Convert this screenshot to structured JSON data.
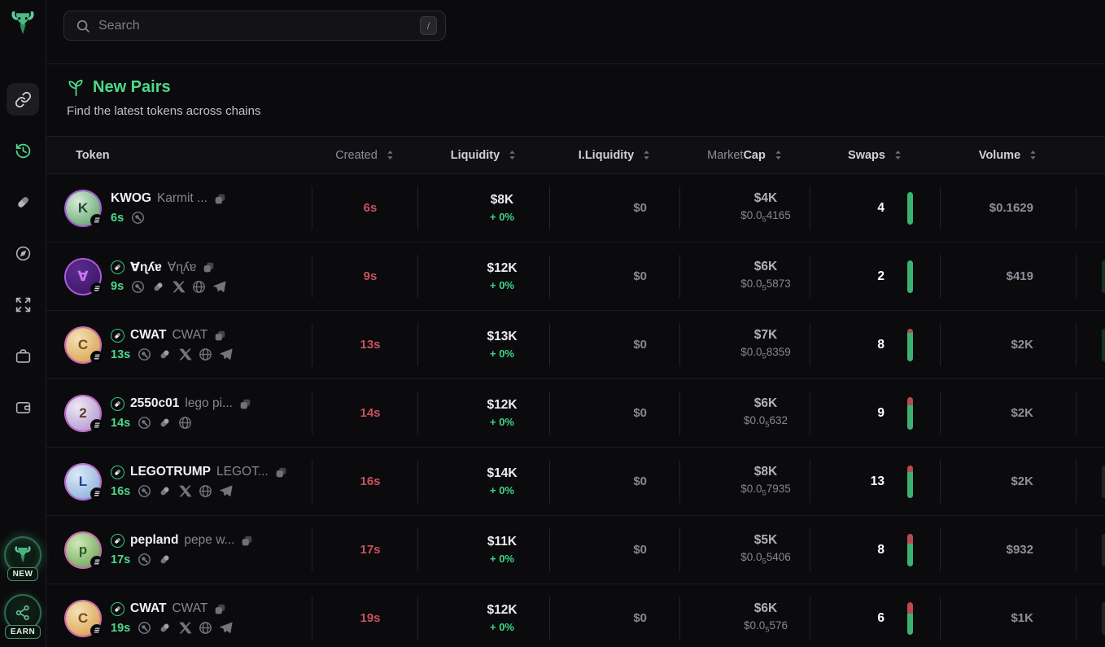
{
  "search": {
    "placeholder": "Search",
    "shortcut_key": "/"
  },
  "sidebar": {
    "logo_icon": "bull-logo",
    "nav_icons": [
      "chain-link",
      "history",
      "pill",
      "compass",
      "expand",
      "briefcase",
      "wallet"
    ],
    "active_icon": "chain-link",
    "badges": [
      {
        "label": "NEW",
        "icon": "bull"
      },
      {
        "label": "EARN",
        "icon": "share-network"
      }
    ]
  },
  "page": {
    "title": "New Pairs",
    "title_icon": "sprout",
    "subtitle": "Find the latest tokens across chains"
  },
  "table": {
    "headers": [
      {
        "label": "Token",
        "sortable": false
      },
      {
        "label": "Created",
        "sortable": true
      },
      {
        "label": "Liquidity",
        "sortable": true
      },
      {
        "label": "I.Liquidity",
        "sortable": true
      },
      {
        "label_light": "Market",
        "label_bold": "Cap",
        "sortable": true
      },
      {
        "label": "Swaps",
        "sortable": true
      },
      {
        "label": "Volume",
        "sortable": true
      }
    ],
    "rows": [
      {
        "symbol": "KWOG",
        "name": "Karmit ...",
        "graduated": false,
        "age": "6s",
        "links": [
          "scan"
        ],
        "created": "6s",
        "liquidity": "$8K",
        "liquidity_change": "+ 0%",
        "i_liquidity": "$0",
        "marketcap": "$4K",
        "price_prefix": "$0.0",
        "price_sub": "5",
        "price_digits": "4165",
        "swaps": "4",
        "sell_ratio": 0,
        "volume": "$0.1629",
        "edge_sliver": "",
        "avatar": {
          "bg1": "#d9ead9",
          "bg2": "#4f9b5e",
          "ring": "#a85fd6",
          "letter": "K",
          "fg": "#1e4d2b"
        }
      },
      {
        "symbol": "∀ɳʎɐ",
        "name": "∀ɳʎɐ",
        "graduated": true,
        "age": "9s",
        "links": [
          "scan",
          "pill",
          "x",
          "globe",
          "telegram"
        ],
        "created": "9s",
        "liquidity": "$12K",
        "liquidity_change": "+ 0%",
        "i_liquidity": "$0",
        "marketcap": "$6K",
        "price_prefix": "$0.0",
        "price_sub": "5",
        "price_digits": "5873",
        "swaps": "2",
        "sell_ratio": 0,
        "volume": "$419",
        "edge_sliver": "#143322",
        "avatar": {
          "bg1": "#5a2b8f",
          "bg2": "#3a1560",
          "ring": "#b05be0",
          "letter": "∀",
          "fg": "#c879f2"
        }
      },
      {
        "symbol": "CWAT",
        "name": "CWAT",
        "graduated": true,
        "age": "13s",
        "links": [
          "scan",
          "pill",
          "x",
          "globe",
          "telegram"
        ],
        "created": "13s",
        "liquidity": "$13K",
        "liquidity_change": "+ 0%",
        "i_liquidity": "$0",
        "marketcap": "$7K",
        "price_prefix": "$0.0",
        "price_sub": "5",
        "price_digits": "8359",
        "swaps": "8",
        "sell_ratio": 0.13,
        "volume": "$2K",
        "edge_sliver": "#143322",
        "avatar": {
          "bg1": "#f2e2b8",
          "bg2": "#d8973f",
          "ring": "#d66bb5",
          "letter": "C",
          "fg": "#7a4a12"
        }
      },
      {
        "symbol": "2550c01",
        "name": "lego pi...",
        "graduated": true,
        "age": "14s",
        "links": [
          "scan",
          "pill",
          "globe"
        ],
        "created": "14s",
        "liquidity": "$12K",
        "liquidity_change": "+ 0%",
        "i_liquidity": "$0",
        "marketcap": "$6K",
        "price_prefix": "$0.0",
        "price_sub": "5",
        "price_digits": "632",
        "swaps": "9",
        "sell_ratio": 0.27,
        "volume": "$2K",
        "edge_sliver": "",
        "avatar": {
          "bg1": "#efe7f5",
          "bg2": "#a98bc9",
          "ring": "#c06ad0",
          "letter": "2",
          "fg": "#5e3d28"
        }
      },
      {
        "symbol": "LEGOTRUMP",
        "name": "LEGOT...",
        "graduated": true,
        "age": "16s",
        "links": [
          "scan",
          "pill",
          "x",
          "globe",
          "telegram"
        ],
        "created": "16s",
        "liquidity": "$14K",
        "liquidity_change": "+ 0%",
        "i_liquidity": "$0",
        "marketcap": "$8K",
        "price_prefix": "$0.0",
        "price_sub": "5",
        "price_digits": "7935",
        "swaps": "13",
        "sell_ratio": 0.22,
        "volume": "$2K",
        "edge_sliver": "#232327",
        "avatar": {
          "bg1": "#dce9f7",
          "bg2": "#7fa7d9",
          "ring": "#c06ad0",
          "letter": "L",
          "fg": "#21458c"
        }
      },
      {
        "symbol": "pepland",
        "name": "pepe w...",
        "graduated": true,
        "age": "17s",
        "links": [
          "scan",
          "pill"
        ],
        "created": "17s",
        "liquidity": "$11K",
        "liquidity_change": "+ 0%",
        "i_liquidity": "$0",
        "marketcap": "$5K",
        "price_prefix": "$0.0",
        "price_sub": "5",
        "price_digits": "5406",
        "swaps": "8",
        "sell_ratio": 0.32,
        "volume": "$932",
        "edge_sliver": "#232327",
        "avatar": {
          "bg1": "#cfe8b8",
          "bg2": "#5f9e4a",
          "ring": "#d66bb5",
          "letter": "p",
          "fg": "#2c5e22"
        }
      },
      {
        "symbol": "CWAT",
        "name": "CWAT",
        "graduated": true,
        "age": "19s",
        "links": [
          "scan",
          "pill",
          "x",
          "globe",
          "telegram"
        ],
        "created": "19s",
        "liquidity": "$12K",
        "liquidity_change": "+ 0%",
        "i_liquidity": "$0",
        "marketcap": "$6K",
        "price_prefix": "$0.0",
        "price_sub": "5",
        "price_digits": "576",
        "swaps": "6",
        "sell_ratio": 0.36,
        "volume": "$1K",
        "edge_sliver": "#232327",
        "avatar": {
          "bg1": "#f2e2b8",
          "bg2": "#d8973f",
          "ring": "#d66bb5",
          "letter": "C",
          "fg": "#7a4a12"
        }
      }
    ]
  },
  "colors": {
    "accent_green": "#4fd98a",
    "created_red": "#c9525e",
    "change_green": "#3fd584",
    "bar_buy": "#3bb272",
    "bar_sell": "#b84c4c"
  }
}
